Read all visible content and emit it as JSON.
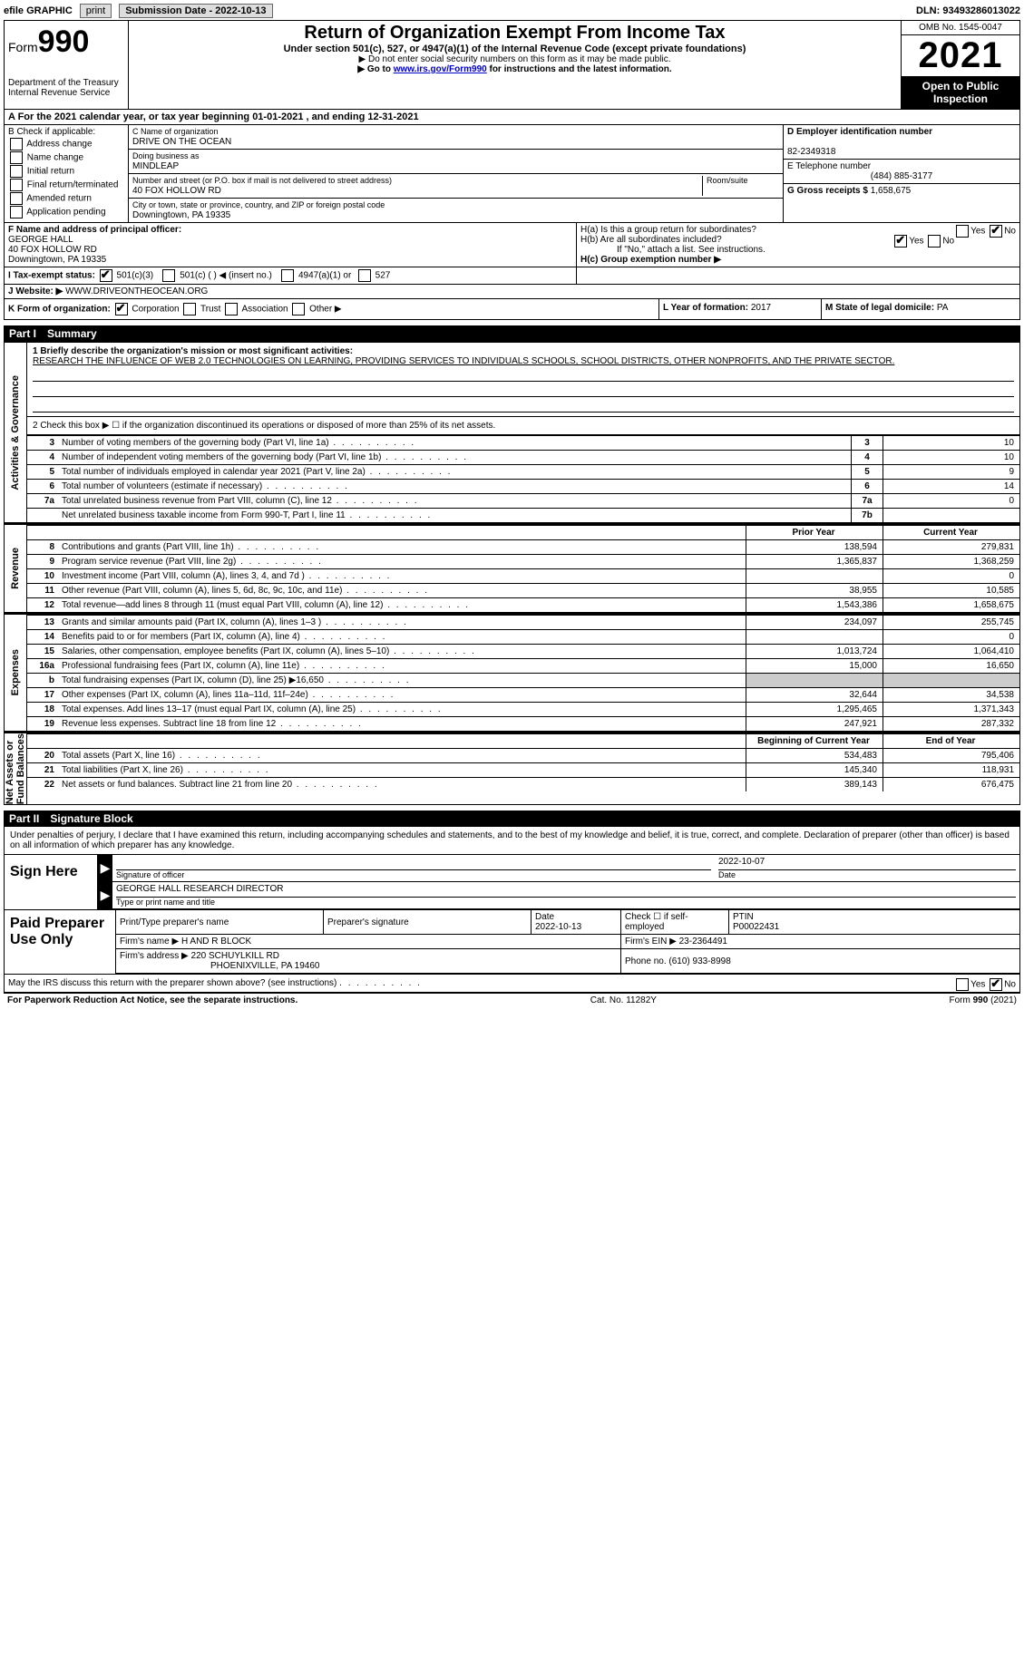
{
  "topbar": {
    "efile_label": "efile GRAPHIC",
    "print": "print",
    "sub_label": "Submission Date - 2022-10-13",
    "dln": "DLN: 93493286013022"
  },
  "header": {
    "form_word": "Form",
    "form_num": "990",
    "title": "Return of Organization Exempt From Income Tax",
    "sub": "Under section 501(c), 527, or 4947(a)(1) of the Internal Revenue Code (except private foundations)",
    "warn": "▶ Do not enter social security numbers on this form as it may be made public.",
    "goto_pre": "▶ Go to ",
    "goto_link": "www.irs.gov/Form990",
    "goto_post": " for instructions and the latest information.",
    "dept": "Department of the Treasury\nInternal Revenue Service",
    "omb": "OMB No. 1545-0047",
    "year": "2021",
    "open": "Open to Public Inspection"
  },
  "rowA": "A For the 2021 calendar year, or tax year beginning 01-01-2021   , and ending 12-31-2021",
  "colB": {
    "hdr": "B Check if applicable:",
    "items": [
      "Address change",
      "Name change",
      "Initial return",
      "Final return/terminated",
      "Amended return",
      "Application pending"
    ]
  },
  "colC": {
    "name_lab": "C Name of organization",
    "name": "DRIVE ON THE OCEAN",
    "dba_lab": "Doing business as",
    "dba": "MINDLEAP",
    "street_lab": "Number and street (or P.O. box if mail is not delivered to street address)",
    "room_lab": "Room/suite",
    "street": "40 FOX HOLLOW RD",
    "city_lab": "City or town, state or province, country, and ZIP or foreign postal code",
    "city": "Downingtown, PA  19335"
  },
  "colD": {
    "ein_lab": "D Employer identification number",
    "ein": "82-2349318",
    "tel_lab": "E Telephone number",
    "tel": "(484) 885-3177",
    "gross_lab": "G Gross receipts $",
    "gross": "1,658,675"
  },
  "rowF": {
    "lab": "F Name and address of principal officer:",
    "name": "GEORGE HALL",
    "addr1": "40 FOX HOLLOW RD",
    "addr2": "Downingtown, PA  19335"
  },
  "rowH": {
    "a": "H(a)  Is this a group return for subordinates?",
    "b": "H(b)  Are all subordinates included?",
    "note": "If \"No,\" attach a list. See instructions.",
    "c": "H(c)  Group exemption number ▶"
  },
  "rowI": {
    "lab": "I   Tax-exempt status:",
    "o1": "501(c)(3)",
    "o2": "501(c) (  ) ◀ (insert no.)",
    "o3": "4947(a)(1) or",
    "o4": "527"
  },
  "rowJ": {
    "lab": "J   Website: ▶",
    "val": " WWW.DRIVEONTHEOCEAN.ORG"
  },
  "rowK": {
    "lab": "K Form of organization:",
    "o1": "Corporation",
    "o2": "Trust",
    "o3": "Association",
    "o4": "Other ▶"
  },
  "rowL": {
    "lab": "L Year of formation:",
    "val": "2017"
  },
  "rowM": {
    "lab": "M State of legal domicile:",
    "val": "PA"
  },
  "part1": {
    "num": "Part I",
    "title": "Summary"
  },
  "mission_lab": "1   Briefly describe the organization's mission or most significant activities:",
  "mission": "RESEARCH THE INFLUENCE OF WEB 2.0 TECHNOLOGIES ON LEARNING, PROVIDING SERVICES TO INDIVIDUALS SCHOOLS, SCHOOL DISTRICTS, OTHER NONPROFITS, AND THE PRIVATE SECTOR.",
  "line2": "2   Check this box ▶ ☐  if the organization discontinued its operations or disposed of more than 25% of its net assets.",
  "gov_rows": [
    {
      "n": "3",
      "t": "Number of voting members of the governing body (Part VI, line 1a)",
      "b": "3",
      "v": "10"
    },
    {
      "n": "4",
      "t": "Number of independent voting members of the governing body (Part VI, line 1b)",
      "b": "4",
      "v": "10"
    },
    {
      "n": "5",
      "t": "Total number of individuals employed in calendar year 2021 (Part V, line 2a)",
      "b": "5",
      "v": "9"
    },
    {
      "n": "6",
      "t": "Total number of volunteers (estimate if necessary)",
      "b": "6",
      "v": "14"
    },
    {
      "n": "7a",
      "t": "Total unrelated business revenue from Part VIII, column (C), line 12",
      "b": "7a",
      "v": "0"
    },
    {
      "n": "",
      "t": "Net unrelated business taxable income from Form 990-T, Part I, line 11",
      "b": "7b",
      "v": ""
    }
  ],
  "py_hdr": "Prior Year",
  "cy_hdr": "Current Year",
  "rev_rows": [
    {
      "n": "8",
      "t": "Contributions and grants (Part VIII, line 1h)",
      "py": "138,594",
      "cy": "279,831"
    },
    {
      "n": "9",
      "t": "Program service revenue (Part VIII, line 2g)",
      "py": "1,365,837",
      "cy": "1,368,259"
    },
    {
      "n": "10",
      "t": "Investment income (Part VIII, column (A), lines 3, 4, and 7d )",
      "py": "",
      "cy": "0"
    },
    {
      "n": "11",
      "t": "Other revenue (Part VIII, column (A), lines 5, 6d, 8c, 9c, 10c, and 11e)",
      "py": "38,955",
      "cy": "10,585"
    },
    {
      "n": "12",
      "t": "Total revenue—add lines 8 through 11 (must equal Part VIII, column (A), line 12)",
      "py": "1,543,386",
      "cy": "1,658,675"
    }
  ],
  "exp_rows": [
    {
      "n": "13",
      "t": "Grants and similar amounts paid (Part IX, column (A), lines 1–3 )",
      "py": "234,097",
      "cy": "255,745"
    },
    {
      "n": "14",
      "t": "Benefits paid to or for members (Part IX, column (A), line 4)",
      "py": "",
      "cy": "0"
    },
    {
      "n": "15",
      "t": "Salaries, other compensation, employee benefits (Part IX, column (A), lines 5–10)",
      "py": "1,013,724",
      "cy": "1,064,410"
    },
    {
      "n": "16a",
      "t": "Professional fundraising fees (Part IX, column (A), line 11e)",
      "py": "15,000",
      "cy": "16,650"
    },
    {
      "n": "b",
      "t": "Total fundraising expenses (Part IX, column (D), line 25) ▶16,650",
      "py": "grey",
      "cy": "grey"
    },
    {
      "n": "17",
      "t": "Other expenses (Part IX, column (A), lines 11a–11d, 11f–24e)",
      "py": "32,644",
      "cy": "34,538"
    },
    {
      "n": "18",
      "t": "Total expenses. Add lines 13–17 (must equal Part IX, column (A), line 25)",
      "py": "1,295,465",
      "cy": "1,371,343"
    },
    {
      "n": "19",
      "t": "Revenue less expenses. Subtract line 18 from line 12",
      "py": "247,921",
      "cy": "287,332"
    }
  ],
  "na_hdr1": "Beginning of Current Year",
  "na_hdr2": "End of Year",
  "na_rows": [
    {
      "n": "20",
      "t": "Total assets (Part X, line 16)",
      "py": "534,483",
      "cy": "795,406"
    },
    {
      "n": "21",
      "t": "Total liabilities (Part X, line 26)",
      "py": "145,340",
      "cy": "118,931"
    },
    {
      "n": "22",
      "t": "Net assets or fund balances. Subtract line 21 from line 20",
      "py": "389,143",
      "cy": "676,475"
    }
  ],
  "side_labels": {
    "gov": "Activities & Governance",
    "rev": "Revenue",
    "exp": "Expenses",
    "na": "Net Assets or\nFund Balances"
  },
  "part2": {
    "num": "Part II",
    "title": "Signature Block"
  },
  "perjury": "Under penalties of perjury, I declare that I have examined this return, including accompanying schedules and statements, and to the best of my knowledge and belief, it is true, correct, and complete. Declaration of preparer (other than officer) is based on all information of which preparer has any knowledge.",
  "sign": {
    "here": "Sign Here",
    "date": "2022-10-07",
    "sig_lab": "Signature of officer",
    "date_lab": "Date",
    "name": "GEORGE HALL  RESEARCH DIRECTOR",
    "name_lab": "Type or print name and title"
  },
  "paid": {
    "hdr": "Paid Preparer Use Only",
    "c1": "Print/Type preparer's name",
    "c2": "Preparer's signature",
    "c3_lab": "Date",
    "c3": "2022-10-13",
    "c4": "Check ☐ if self-employed",
    "c5_lab": "PTIN",
    "c5": "P00022431",
    "firm_lab": "Firm's name    ▶",
    "firm": "H AND R BLOCK",
    "ein_lab": "Firm's EIN ▶",
    "ein": "23-2364491",
    "addr_lab": "Firm's address ▶",
    "addr": "220 SCHUYLKILL RD",
    "addr2": "PHOENIXVILLE, PA  19460",
    "phone_lab": "Phone no.",
    "phone": "(610) 933-8998"
  },
  "discuss": "May the IRS discuss this return with the preparer shown above? (see instructions)",
  "footer": {
    "l": "For Paperwork Reduction Act Notice, see the separate instructions.",
    "c": "Cat. No. 11282Y",
    "r": "Form 990 (2021)"
  }
}
